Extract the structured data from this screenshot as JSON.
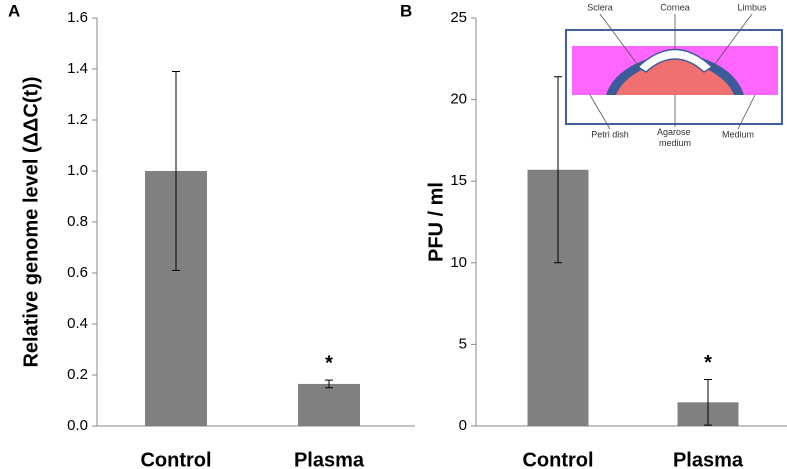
{
  "chart_data": [
    {
      "type": "bar",
      "panel_label": "A",
      "ylabel": "Relative genome level (ΔΔC(t))",
      "categories": [
        "Control",
        "Plasma"
      ],
      "values": [
        1.0,
        0.165
      ],
      "errors": [
        0.39,
        0.015
      ],
      "color": "#808080",
      "annotation": "*",
      "ylim": [
        0,
        1.6
      ],
      "yticks": [
        {
          "value": 0,
          "label": "0.0"
        },
        0.2,
        0.4,
        0.6,
        0.8,
        {
          "value": 1,
          "label": "1.0"
        },
        1.2,
        1.4,
        1.6
      ]
    },
    {
      "type": "bar",
      "panel_label": "B",
      "ylabel": "PFU / ml",
      "categories": [
        "Control",
        "Plasma"
      ],
      "values": [
        15.7,
        1.45
      ],
      "errors": [
        5.7,
        1.4
      ],
      "color": "#808080",
      "annotation": "*",
      "ylim": [
        0,
        25
      ],
      "yticks": [
        0,
        5,
        10,
        15,
        20,
        25
      ],
      "inset": {
        "labels": [
          "Sclera",
          "Cornea",
          "Limbus",
          "Petri dish",
          "Agarose medium",
          "Medium"
        ]
      }
    }
  ]
}
